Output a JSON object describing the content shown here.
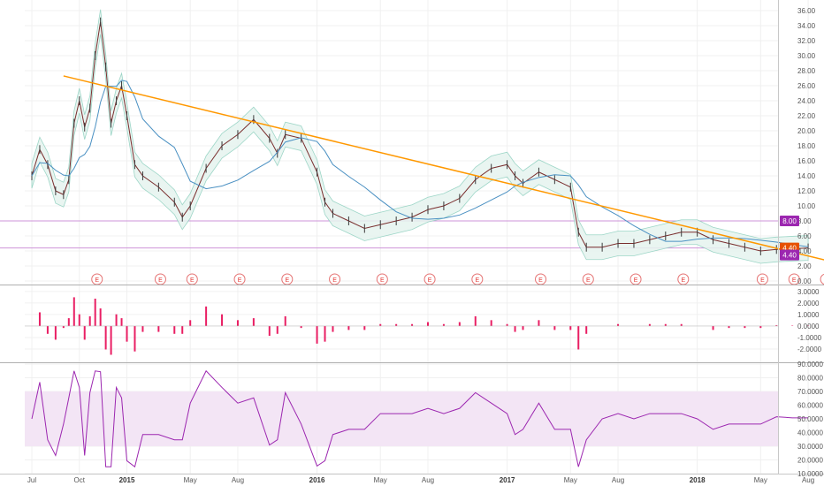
{
  "chart_data": {
    "type": "line",
    "x_ticks": [
      "Jul",
      "Oct",
      "2015",
      "May",
      "Aug",
      "2016",
      "May",
      "Aug",
      "2017",
      "May",
      "Aug",
      "2018",
      "May",
      "Aug"
    ],
    "price_panel": {
      "y_ticks": [
        "36.00",
        "34.00",
        "32.00",
        "30.00",
        "28.00",
        "26.00",
        "24.00",
        "22.00",
        "20.00",
        "18.00",
        "16.00",
        "14.00",
        "12.00",
        "10.00",
        "8.00",
        "6.00",
        "4.00",
        "2.00",
        "0.00"
      ],
      "ylim": [
        0,
        36
      ],
      "horizontal_levels": [
        8.0,
        4.4
      ],
      "price_labels": [
        {
          "text": "8.00",
          "value": 8.0,
          "color": "#9c27b0"
        },
        {
          "text": "4.40",
          "value": 4.4,
          "color": "#e65100"
        },
        {
          "text": "4.40",
          "value": 4.4,
          "color": "#9c27b0"
        }
      ],
      "trendline": {
        "from": {
          "x": "Sep 2014",
          "y": 27.3
        },
        "to": {
          "x": "Sep 2018",
          "y": 2.6
        },
        "color": "#ff9800"
      },
      "close_series": [
        {
          "x": "Jul 2014",
          "y": 14.0
        },
        {
          "x": "Jul 2014",
          "y": 17.5
        },
        {
          "x": "Aug 2014",
          "y": 15.5
        },
        {
          "x": "Aug 2014",
          "y": 12.0
        },
        {
          "x": "Sep 2014",
          "y": 11.5
        },
        {
          "x": "Sep 2014",
          "y": 13.5
        },
        {
          "x": "Sep 2014",
          "y": 21.0
        },
        {
          "x": "Oct 2014",
          "y": 24.0
        },
        {
          "x": "Oct 2014",
          "y": 20.5
        },
        {
          "x": "Oct 2014",
          "y": 23.0
        },
        {
          "x": "Nov 2014",
          "y": 30.0
        },
        {
          "x": "Nov 2014",
          "y": 34.5
        },
        {
          "x": "Nov 2014",
          "y": 28.5
        },
        {
          "x": "Dec 2014",
          "y": 21.0
        },
        {
          "x": "Dec 2014",
          "y": 24.0
        },
        {
          "x": "Dec 2014",
          "y": 26.0
        },
        {
          "x": "Jan 2015",
          "y": 22.0
        },
        {
          "x": "Jan 2015",
          "y": 15.5
        },
        {
          "x": "Feb 2015",
          "y": 14.0
        },
        {
          "x": "Mar 2015",
          "y": 12.5
        },
        {
          "x": "Apr 2015",
          "y": 10.5
        },
        {
          "x": "Apr 2015",
          "y": 8.5
        },
        {
          "x": "May 2015",
          "y": 10.0
        },
        {
          "x": "Jun 2015",
          "y": 15.0
        },
        {
          "x": "Jul 2015",
          "y": 18.0
        },
        {
          "x": "Aug 2015",
          "y": 19.5
        },
        {
          "x": "Sep 2015",
          "y": 21.5
        },
        {
          "x": "Oct 2015",
          "y": 19.0
        },
        {
          "x": "Oct 2015",
          "y": 17.0
        },
        {
          "x": "Nov 2015",
          "y": 19.5
        },
        {
          "x": "Dec 2015",
          "y": 19.0
        },
        {
          "x": "Jan 2016",
          "y": 14.5
        },
        {
          "x": "Jan 2016",
          "y": 10.5
        },
        {
          "x": "Feb 2016",
          "y": 9.0
        },
        {
          "x": "Mar 2016",
          "y": 8.0
        },
        {
          "x": "Apr 2016",
          "y": 7.0
        },
        {
          "x": "May 2016",
          "y": 7.5
        },
        {
          "x": "Jun 2016",
          "y": 8.0
        },
        {
          "x": "Jul 2016",
          "y": 8.5
        },
        {
          "x": "Aug 2016",
          "y": 9.5
        },
        {
          "x": "Sep 2016",
          "y": 10.0
        },
        {
          "x": "Oct 2016",
          "y": 11.0
        },
        {
          "x": "Nov 2016",
          "y": 13.5
        },
        {
          "x": "Dec 2016",
          "y": 15.0
        },
        {
          "x": "Jan 2017",
          "y": 15.5
        },
        {
          "x": "Jan 2017",
          "y": 14.0
        },
        {
          "x": "Feb 2017",
          "y": 13.0
        },
        {
          "x": "Mar 2017",
          "y": 14.5
        },
        {
          "x": "Apr 2017",
          "y": 13.5
        },
        {
          "x": "May 2017",
          "y": 12.5
        },
        {
          "x": "May 2017",
          "y": 6.5
        },
        {
          "x": "Jun 2017",
          "y": 4.5
        },
        {
          "x": "Jul 2017",
          "y": 4.5
        },
        {
          "x": "Aug 2017",
          "y": 5.0
        },
        {
          "x": "Sep 2017",
          "y": 5.0
        },
        {
          "x": "Oct 2017",
          "y": 5.5
        },
        {
          "x": "Nov 2017",
          "y": 6.0
        },
        {
          "x": "Dec 2017",
          "y": 6.5
        },
        {
          "x": "Jan 2018",
          "y": 6.5
        },
        {
          "x": "Feb 2018",
          "y": 5.5
        },
        {
          "x": "Mar 2018",
          "y": 5.0
        },
        {
          "x": "Apr 2018",
          "y": 4.5
        },
        {
          "x": "May 2018",
          "y": 4.0
        },
        {
          "x": "Jun 2018",
          "y": 4.2
        },
        {
          "x": "Jul 2018",
          "y": 4.3
        },
        {
          "x": "Aug 2018",
          "y": 4.4
        }
      ],
      "earnings_markers": [
        "E",
        "E",
        "E",
        "E",
        "E",
        "E",
        "E",
        "E",
        "E",
        "E",
        "E",
        "E",
        "E",
        "E",
        "E",
        "E"
      ]
    },
    "macd_panel": {
      "y_ticks": [
        "3.0000",
        "2.0000",
        "1.0000",
        "0.0000",
        "-1.0000",
        "-2.0000"
      ],
      "ylim": [
        -3,
        3.3
      ]
    },
    "rsi_panel": {
      "y_ticks": [
        "90.0000",
        "80.0000",
        "70.0000",
        "60.0000",
        "50.0000",
        "40.0000",
        "30.0000",
        "20.0000",
        "10.0000"
      ],
      "ylim": [
        10,
        90
      ],
      "band": [
        30,
        70
      ]
    },
    "grid": true
  }
}
